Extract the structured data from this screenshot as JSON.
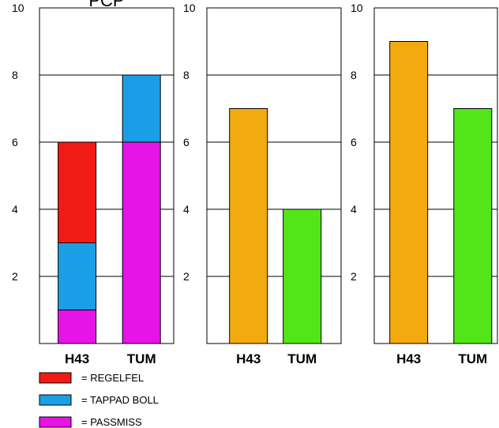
{
  "chart_data": [
    {
      "type": "bar",
      "stacked": true,
      "title": "PCP",
      "categories": [
        "H43",
        "TUM"
      ],
      "series": [
        {
          "name": "PASSMISS",
          "color": "#E614E6",
          "values": [
            1,
            6
          ]
        },
        {
          "name": "TAPPAD BOLL",
          "color": "#1A9FE6",
          "values": [
            2,
            2
          ]
        },
        {
          "name": "REGELFEL",
          "color": "#F21A14",
          "values": [
            3,
            0
          ]
        }
      ],
      "ylim": [
        0,
        10
      ],
      "yticks": [
        2,
        4,
        6,
        8,
        10
      ],
      "grid": true,
      "legend": "bottom-left"
    },
    {
      "type": "bar",
      "title": "",
      "categories": [
        "H43",
        "TUM"
      ],
      "values": [
        7,
        4
      ],
      "colors": [
        "#F2AA0E",
        "#52E619"
      ],
      "ylim": [
        0,
        10
      ],
      "yticks": [
        2,
        4,
        6,
        8,
        10
      ],
      "grid": true
    },
    {
      "type": "bar",
      "title": "",
      "categories": [
        "H43",
        "TUM"
      ],
      "values": [
        9,
        7
      ],
      "colors": [
        "#F2AA0E",
        "#52E619"
      ],
      "ylim": [
        0,
        10
      ],
      "yticks": [
        2,
        4,
        6,
        8,
        10
      ],
      "grid": true
    }
  ],
  "legend": [
    {
      "label": "= REGELFEL",
      "color": "#F21A14"
    },
    {
      "label": "= TAPPAD BOLL",
      "color": "#1A9FE6"
    },
    {
      "label": "= PASSMISS",
      "color": "#E614E6"
    }
  ]
}
